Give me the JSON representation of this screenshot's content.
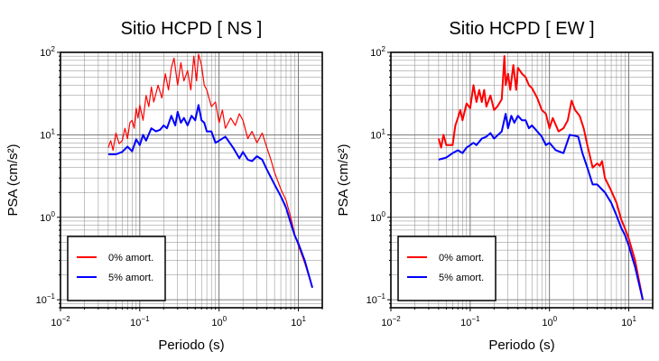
{
  "chart_data": [
    {
      "type": "line",
      "title": "Sitio HCPD [ NS ]",
      "xlabel": "Periodo (s)",
      "ylabel": "PSA (cm/s²)",
      "xscale": "log",
      "yscale": "log",
      "xlim": [
        0.01,
        20
      ],
      "ylim": [
        0.08,
        100
      ],
      "grid": true,
      "legend_position": "bottom-left",
      "x_ticks": [
        {
          "base": "10",
          "exp": "−2"
        },
        {
          "base": "10",
          "exp": "−1"
        },
        {
          "base": "10",
          "exp": "0"
        },
        {
          "base": "10",
          "exp": "1"
        }
      ],
      "y_ticks": [
        {
          "base": "10",
          "exp": "−1"
        },
        {
          "base": "10",
          "exp": "0"
        },
        {
          "base": "10",
          "exp": "1"
        },
        {
          "base": "10",
          "exp": "2"
        }
      ],
      "series": [
        {
          "name": "0% amort.",
          "color": "#ff0000",
          "line_width": 1.2,
          "x": [
            0.04,
            0.043,
            0.046,
            0.05,
            0.055,
            0.06,
            0.065,
            0.07,
            0.075,
            0.08,
            0.085,
            0.09,
            0.095,
            0.1,
            0.11,
            0.12,
            0.13,
            0.14,
            0.15,
            0.17,
            0.19,
            0.21,
            0.23,
            0.25,
            0.27,
            0.3,
            0.33,
            0.36,
            0.4,
            0.44,
            0.48,
            0.52,
            0.55,
            0.6,
            0.65,
            0.7,
            0.8,
            0.9,
            1.0,
            1.1,
            1.2,
            1.4,
            1.6,
            1.8,
            2.0,
            2.3,
            2.6,
            3.0,
            3.5,
            4.0,
            4.5,
            5.0,
            6.0,
            7.0,
            8.0,
            9.0,
            10.0,
            12.0,
            15.0
          ],
          "y": [
            7.0,
            8.5,
            6.5,
            10.5,
            7.8,
            8.5,
            12.0,
            9.0,
            14.0,
            15.0,
            12.0,
            21.0,
            16.0,
            23.0,
            15.0,
            30.0,
            22.0,
            38.0,
            25.0,
            40.0,
            28.0,
            55.0,
            35.0,
            65.0,
            85.0,
            40.0,
            75.0,
            45.0,
            60.0,
            35.0,
            90.0,
            45.0,
            95.0,
            70.0,
            40.0,
            35.0,
            22.0,
            25.0,
            14.0,
            20.0,
            12.0,
            16.0,
            13.0,
            18.0,
            15.0,
            9.0,
            11.0,
            8.0,
            10.5,
            7.0,
            5.0,
            3.5,
            2.2,
            1.6,
            1.0,
            0.62,
            0.45,
            0.28,
            0.14
          ]
        },
        {
          "name": "5% amort.",
          "color": "#0000ff",
          "line_width": 2,
          "x": [
            0.04,
            0.05,
            0.06,
            0.07,
            0.08,
            0.09,
            0.1,
            0.11,
            0.12,
            0.14,
            0.16,
            0.18,
            0.2,
            0.22,
            0.25,
            0.28,
            0.3,
            0.33,
            0.36,
            0.4,
            0.45,
            0.5,
            0.55,
            0.6,
            0.65,
            0.7,
            0.8,
            0.9,
            1.0,
            1.2,
            1.5,
            1.8,
            2.0,
            2.3,
            2.6,
            3.0,
            3.5,
            4.0,
            5.0,
            6.0,
            7.0,
            8.0,
            9.0,
            10.0,
            12.0,
            15.0
          ],
          "y": [
            5.8,
            5.8,
            6.2,
            7.2,
            6.3,
            8.8,
            7.5,
            10.0,
            8.5,
            12.0,
            11.0,
            11.5,
            13.0,
            12.0,
            17.0,
            13.0,
            19.0,
            14.0,
            16.0,
            13.0,
            17.0,
            15.0,
            23.0,
            15.0,
            14.0,
            11.0,
            11.0,
            8.0,
            8.5,
            9.5,
            7.0,
            5.2,
            6.2,
            5.0,
            4.8,
            5.5,
            5.0,
            3.8,
            2.5,
            1.8,
            1.3,
            0.85,
            0.6,
            0.48,
            0.3,
            0.14
          ]
        }
      ]
    },
    {
      "type": "line",
      "title": "Sitio HCPD [ EW ]",
      "xlabel": "Periodo (s)",
      "ylabel": "PSA (cm/s²)",
      "xscale": "log",
      "yscale": "log",
      "xlim": [
        0.01,
        20
      ],
      "ylim": [
        0.08,
        100
      ],
      "grid": true,
      "legend_position": "bottom-left",
      "x_ticks": [
        {
          "base": "10",
          "exp": "−2"
        },
        {
          "base": "10",
          "exp": "−1"
        },
        {
          "base": "10",
          "exp": "0"
        },
        {
          "base": "10",
          "exp": "1"
        }
      ],
      "y_ticks": [
        {
          "base": "10",
          "exp": "−1"
        },
        {
          "base": "10",
          "exp": "0"
        },
        {
          "base": "10",
          "exp": "1"
        },
        {
          "base": "10",
          "exp": "2"
        }
      ],
      "series": [
        {
          "name": "0% amort.",
          "color": "#ff0000",
          "line_width": 2,
          "x": [
            0.04,
            0.043,
            0.046,
            0.05,
            0.055,
            0.06,
            0.065,
            0.07,
            0.075,
            0.08,
            0.09,
            0.1,
            0.11,
            0.12,
            0.13,
            0.14,
            0.15,
            0.16,
            0.18,
            0.2,
            0.22,
            0.25,
            0.27,
            0.28,
            0.3,
            0.32,
            0.35,
            0.38,
            0.4,
            0.45,
            0.5,
            0.55,
            0.6,
            0.7,
            0.8,
            0.9,
            1.0,
            1.1,
            1.3,
            1.5,
            1.7,
            1.9,
            2.1,
            2.4,
            2.7,
            3.0,
            3.5,
            4.0,
            4.3,
            4.6,
            5.0,
            6.0,
            7.0,
            8.0,
            9.0,
            10.0,
            12.0,
            15.0
          ],
          "y": [
            9.0,
            7.0,
            10.0,
            7.5,
            7.5,
            7.5,
            13.0,
            16.0,
            20.0,
            15.0,
            24.0,
            21.0,
            40.0,
            25.0,
            35.0,
            25.0,
            35.0,
            22.0,
            30.0,
            20.0,
            22.0,
            27.0,
            90.0,
            40.0,
            55.0,
            35.0,
            70.0,
            35.0,
            65.0,
            55.0,
            50.0,
            40.0,
            37.0,
            28.0,
            20.0,
            18.0,
            12.0,
            16.0,
            11.0,
            12.0,
            15.0,
            26.0,
            20.0,
            17.0,
            12.0,
            7.5,
            4.0,
            4.5,
            4.2,
            4.8,
            3.0,
            2.1,
            1.5,
            0.95,
            0.72,
            0.55,
            0.3,
            0.1
          ]
        },
        {
          "name": "5% amort.",
          "color": "#0000ff",
          "line_width": 2,
          "x": [
            0.04,
            0.05,
            0.06,
            0.07,
            0.08,
            0.09,
            0.1,
            0.11,
            0.12,
            0.14,
            0.16,
            0.18,
            0.2,
            0.22,
            0.25,
            0.28,
            0.3,
            0.33,
            0.36,
            0.4,
            0.45,
            0.5,
            0.55,
            0.6,
            0.7,
            0.8,
            0.9,
            1.0,
            1.2,
            1.5,
            1.8,
            2.0,
            2.3,
            2.6,
            3.0,
            3.5,
            4.0,
            5.0,
            6.0,
            7.0,
            8.0,
            9.0,
            10.0,
            12.0,
            15.0
          ],
          "y": [
            5.0,
            5.3,
            6.0,
            6.5,
            6.0,
            7.0,
            7.5,
            8.0,
            7.5,
            9.0,
            9.5,
            10.5,
            9.0,
            9.8,
            11.0,
            18.0,
            12.0,
            17.0,
            14.0,
            17.0,
            15.0,
            15.0,
            12.0,
            13.0,
            11.0,
            9.5,
            7.5,
            8.0,
            6.5,
            6.0,
            10.0,
            9.8,
            9.5,
            6.0,
            4.0,
            2.5,
            2.5,
            2.0,
            1.5,
            1.05,
            0.75,
            0.6,
            0.45,
            0.25,
            0.1
          ]
        }
      ]
    }
  ]
}
